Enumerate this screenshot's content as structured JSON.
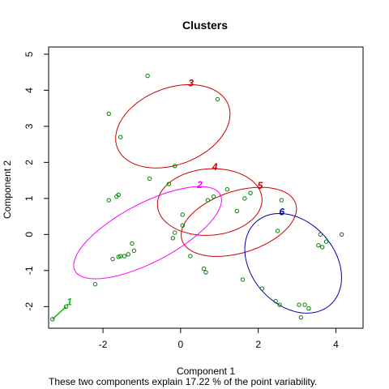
{
  "chart_data": {
    "type": "scatter",
    "title": "Clusters",
    "xlabel": "Component 1",
    "ylabel": "Component 2",
    "subtitle": "These two components explain 17.22 % of the point variability.",
    "xlim": [
      -3.4,
      4.7
    ],
    "ylim": [
      -2.6,
      5.2
    ],
    "x_ticks": [
      -2,
      0,
      2,
      4
    ],
    "y_ticks": [
      -2,
      -1,
      0,
      1,
      2,
      3,
      4,
      5
    ],
    "grid": false,
    "point_color": "#008000",
    "points": [
      [
        -1.85,
        3.35
      ],
      [
        -1.55,
        2.7
      ],
      [
        -0.85,
        4.4
      ],
      [
        0.95,
        3.75
      ],
      [
        -1.65,
        1.05
      ],
      [
        -1.6,
        1.1
      ],
      [
        -1.85,
        0.95
      ],
      [
        -0.8,
        1.55
      ],
      [
        -0.3,
        1.4
      ],
      [
        -0.15,
        1.9
      ],
      [
        -1.25,
        -0.25
      ],
      [
        -1.35,
        -0.55
      ],
      [
        -1.45,
        -0.6
      ],
      [
        -1.55,
        -0.6
      ],
      [
        -1.6,
        -0.62
      ],
      [
        -1.75,
        -0.68
      ],
      [
        -1.2,
        -0.45
      ],
      [
        -2.2,
        -1.38
      ],
      [
        -0.2,
        -0.1
      ],
      [
        -0.15,
        0.05
      ],
      [
        0.05,
        0.25
      ],
      [
        0.05,
        0.55
      ],
      [
        0.25,
        -0.6
      ],
      [
        0.6,
        -0.95
      ],
      [
        0.65,
        -1.05
      ],
      [
        0.7,
        0.95
      ],
      [
        0.85,
        1.05
      ],
      [
        1.2,
        1.25
      ],
      [
        1.45,
        0.65
      ],
      [
        1.65,
        1.0
      ],
      [
        1.8,
        1.15
      ],
      [
        2.5,
        0.1
      ],
      [
        2.6,
        0.95
      ],
      [
        1.6,
        -1.25
      ],
      [
        2.1,
        -1.5
      ],
      [
        2.45,
        -1.85
      ],
      [
        2.55,
        -1.95
      ],
      [
        3.05,
        -1.95
      ],
      [
        3.1,
        -2.3
      ],
      [
        3.2,
        -1.95
      ],
      [
        3.3,
        -2.05
      ],
      [
        3.55,
        -0.3
      ],
      [
        3.6,
        0.0
      ],
      [
        3.65,
        -0.35
      ],
      [
        3.75,
        -0.2
      ],
      [
        4.15,
        0.0
      ],
      [
        -3.3,
        -2.35
      ],
      [
        -2.95,
        -2.0
      ]
    ],
    "clusters": [
      {
        "label": "1",
        "color": "#00C000",
        "shape": "segment",
        "p1": [
          -3.3,
          -2.35
        ],
        "p2": [
          -2.95,
          -2.0
        ]
      },
      {
        "label": "2",
        "color": "#FF00FF",
        "cx": -0.85,
        "cy": 0.05,
        "rx": 2.15,
        "ry": 0.8,
        "angle": 30
      },
      {
        "label": "3",
        "color": "#CC0000",
        "cx": -0.2,
        "cy": 3.0,
        "rx": 1.55,
        "ry": 1.05,
        "angle": 25
      },
      {
        "label": "4",
        "color": "#CC0000",
        "cx": 0.75,
        "cy": 0.9,
        "rx": 1.35,
        "ry": 0.92,
        "angle": 5
      },
      {
        "label": "5",
        "color": "#CC0000",
        "cx": 1.5,
        "cy": 0.35,
        "rx": 1.55,
        "ry": 0.85,
        "angle": 20
      },
      {
        "label": "6",
        "color": "#0000AA",
        "cx": 2.9,
        "cy": -0.8,
        "rx": 1.5,
        "ry": 1.1,
        "angle": -55
      }
    ]
  }
}
